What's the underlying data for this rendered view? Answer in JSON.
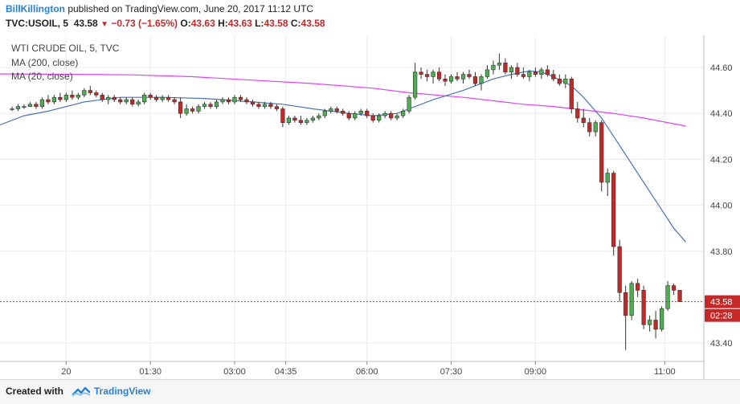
{
  "header": {
    "author": "BillKillington",
    "published": " published on TradingView.com, June 20, 2017 11:12 UTC",
    "symbol": "TVC:USOIL, 5",
    "last": "43.58",
    "change": "−0.73 (−1.65%)",
    "ohlc": [
      {
        "label": "O:",
        "value": "43.63"
      },
      {
        "label": "H:",
        "value": "43.63"
      },
      {
        "label": "L:",
        "value": "43.58"
      },
      {
        "label": "C:",
        "value": "43.58"
      }
    ]
  },
  "footer": {
    "created": "Created with",
    "brand": "TradingView"
  },
  "colors": {
    "up": "#4caf50",
    "down": "#c62828",
    "ma200": "#e040fb",
    "ma20": "#4a73b5",
    "price_line": "#c62828"
  },
  "chart_data": {
    "type": "candlestick",
    "legend": [
      "WTI CRUDE OIL, 5, TVC",
      "MA (200, close)",
      "MA (20, close)"
    ],
    "y_ticks": [
      "44.60",
      "44.40",
      "44.20",
      "44.00",
      "43.80",
      "43.40"
    ],
    "y_tick_values": [
      44.6,
      44.4,
      44.2,
      44.0,
      43.8,
      43.4
    ],
    "ylim": [
      43.32,
      44.74
    ],
    "x_ticks": [
      "20",
      "01:30",
      "03:00",
      "04:35",
      "06:00",
      "07:30",
      "09:00",
      "11:00"
    ],
    "x_tick_pos": [
      9,
      23,
      37,
      45.5,
      59,
      73,
      87,
      108.5
    ],
    "x_range": [
      -2,
      115
    ],
    "last_price": "43.58",
    "last_price_value": 43.58,
    "countdown": "02:28",
    "ohlc": [
      [
        44.42,
        44.43,
        44.41,
        44.42
      ],
      [
        44.42,
        44.44,
        44.41,
        44.43
      ],
      [
        44.43,
        44.44,
        44.42,
        44.43
      ],
      [
        44.43,
        44.45,
        44.43,
        44.44
      ],
      [
        44.44,
        44.45,
        44.42,
        44.43
      ],
      [
        44.43,
        44.47,
        44.42,
        44.46
      ],
      [
        44.46,
        44.48,
        44.44,
        44.45
      ],
      [
        44.45,
        44.48,
        44.44,
        44.47
      ],
      [
        44.47,
        44.49,
        44.45,
        44.46
      ],
      [
        44.46,
        44.49,
        44.45,
        44.48
      ],
      [
        44.48,
        44.5,
        44.46,
        44.47
      ],
      [
        44.47,
        44.49,
        44.46,
        44.48
      ],
      [
        44.48,
        44.51,
        44.47,
        44.5
      ],
      [
        44.5,
        44.52,
        44.48,
        44.49
      ],
      [
        44.49,
        44.5,
        44.47,
        44.48
      ],
      [
        44.48,
        44.49,
        44.45,
        44.46
      ],
      [
        44.46,
        44.48,
        44.44,
        44.47
      ],
      [
        44.47,
        44.48,
        44.45,
        44.46
      ],
      [
        44.46,
        44.47,
        44.44,
        44.45
      ],
      [
        44.45,
        44.47,
        44.44,
        44.46
      ],
      [
        44.46,
        44.47,
        44.43,
        44.44
      ],
      [
        44.44,
        44.46,
        44.43,
        44.45
      ],
      [
        44.45,
        44.49,
        44.44,
        44.48
      ],
      [
        44.48,
        44.49,
        44.46,
        44.47
      ],
      [
        44.47,
        44.48,
        44.45,
        44.46
      ],
      [
        44.46,
        44.48,
        44.45,
        44.47
      ],
      [
        44.47,
        44.48,
        44.45,
        44.46
      ],
      [
        44.46,
        44.47,
        44.44,
        44.45
      ],
      [
        44.45,
        44.47,
        44.38,
        44.4
      ],
      [
        44.4,
        44.44,
        44.39,
        44.42
      ],
      [
        44.42,
        44.43,
        44.4,
        44.41
      ],
      [
        44.41,
        44.44,
        44.4,
        44.43
      ],
      [
        44.43,
        44.45,
        44.42,
        44.44
      ],
      [
        44.44,
        44.45,
        44.42,
        44.43
      ],
      [
        44.43,
        44.46,
        44.42,
        44.45
      ],
      [
        44.45,
        44.47,
        44.44,
        44.46
      ],
      [
        44.46,
        44.47,
        44.44,
        44.45
      ],
      [
        44.45,
        44.48,
        44.44,
        44.47
      ],
      [
        44.47,
        44.48,
        44.45,
        44.46
      ],
      [
        44.46,
        44.47,
        44.44,
        44.45
      ],
      [
        44.45,
        44.46,
        44.43,
        44.44
      ],
      [
        44.44,
        44.45,
        44.42,
        44.43
      ],
      [
        44.43,
        44.45,
        44.42,
        44.44
      ],
      [
        44.44,
        44.45,
        44.42,
        44.43
      ],
      [
        44.43,
        44.44,
        44.41,
        44.42
      ],
      [
        44.42,
        44.43,
        44.34,
        44.36
      ],
      [
        44.36,
        44.39,
        44.35,
        44.38
      ],
      [
        44.38,
        44.39,
        44.36,
        44.37
      ],
      [
        44.37,
        44.39,
        44.35,
        44.36
      ],
      [
        44.36,
        44.38,
        44.35,
        44.37
      ],
      [
        44.37,
        44.39,
        44.36,
        44.38
      ],
      [
        44.38,
        44.4,
        44.37,
        44.39
      ],
      [
        44.39,
        44.42,
        44.38,
        44.41
      ],
      [
        44.41,
        44.43,
        44.4,
        44.42
      ],
      [
        44.42,
        44.43,
        44.4,
        44.41
      ],
      [
        44.41,
        44.42,
        44.39,
        44.4
      ],
      [
        44.4,
        44.41,
        44.37,
        44.38
      ],
      [
        44.38,
        44.41,
        44.37,
        44.4
      ],
      [
        44.4,
        44.42,
        44.39,
        44.41
      ],
      [
        44.41,
        44.42,
        44.38,
        44.39
      ],
      [
        44.39,
        44.4,
        44.36,
        44.37
      ],
      [
        44.37,
        44.4,
        44.36,
        44.39
      ],
      [
        44.39,
        44.41,
        44.38,
        44.4
      ],
      [
        44.4,
        44.41,
        44.37,
        44.38
      ],
      [
        44.38,
        44.4,
        44.37,
        44.39
      ],
      [
        44.39,
        44.42,
        44.38,
        44.41
      ],
      [
        44.41,
        44.48,
        44.4,
        44.47
      ],
      [
        44.47,
        44.62,
        44.46,
        44.58
      ],
      [
        44.58,
        44.6,
        44.55,
        44.57
      ],
      [
        44.57,
        44.59,
        44.54,
        44.56
      ],
      [
        44.56,
        44.59,
        44.53,
        44.58
      ],
      [
        44.58,
        44.6,
        44.54,
        44.55
      ],
      [
        44.55,
        44.57,
        44.52,
        44.54
      ],
      [
        44.54,
        44.57,
        44.53,
        44.56
      ],
      [
        44.56,
        44.58,
        44.54,
        44.55
      ],
      [
        44.55,
        44.58,
        44.53,
        44.57
      ],
      [
        44.57,
        44.59,
        44.55,
        44.56
      ],
      [
        44.56,
        44.58,
        44.52,
        44.53
      ],
      [
        44.53,
        44.57,
        44.5,
        44.56
      ],
      [
        44.56,
        44.61,
        44.55,
        44.59
      ],
      [
        44.59,
        44.63,
        44.57,
        44.61
      ],
      [
        44.61,
        44.66,
        44.59,
        44.62
      ],
      [
        44.62,
        44.64,
        44.57,
        44.58
      ],
      [
        44.58,
        44.61,
        44.55,
        44.6
      ],
      [
        44.6,
        44.62,
        44.56,
        44.57
      ],
      [
        44.57,
        44.6,
        44.55,
        44.56
      ],
      [
        44.56,
        44.59,
        44.54,
        44.58
      ],
      [
        44.58,
        44.6,
        44.56,
        44.57
      ],
      [
        44.57,
        44.6,
        44.55,
        44.59
      ],
      [
        44.59,
        44.61,
        44.56,
        44.57
      ],
      [
        44.57,
        44.59,
        44.54,
        44.55
      ],
      [
        44.55,
        44.57,
        44.52,
        44.53
      ],
      [
        44.53,
        44.57,
        44.51,
        44.55
      ],
      [
        44.55,
        44.56,
        44.4,
        44.42
      ],
      [
        44.42,
        44.45,
        44.36,
        44.38
      ],
      [
        44.38,
        44.42,
        44.34,
        44.36
      ],
      [
        44.36,
        44.38,
        44.3,
        44.32
      ],
      [
        44.32,
        44.37,
        44.3,
        44.36
      ],
      [
        44.36,
        44.37,
        44.06,
        44.1
      ],
      [
        44.1,
        44.16,
        44.04,
        44.14
      ],
      [
        44.14,
        44.15,
        43.78,
        43.82
      ],
      [
        43.82,
        43.85,
        43.58,
        43.62
      ],
      [
        43.62,
        43.65,
        43.37,
        43.52
      ],
      [
        43.52,
        43.67,
        43.5,
        43.66
      ],
      [
        43.66,
        43.68,
        43.6,
        43.63
      ],
      [
        43.63,
        43.65,
        43.46,
        43.48
      ],
      [
        43.48,
        43.52,
        43.45,
        43.5
      ],
      [
        43.5,
        43.54,
        43.42,
        43.46
      ],
      [
        43.46,
        43.56,
        43.45,
        43.55
      ],
      [
        43.55,
        43.67,
        43.54,
        43.65
      ],
      [
        43.65,
        43.66,
        43.61,
        43.63
      ],
      [
        43.63,
        43.63,
        43.58,
        43.58
      ]
    ],
    "ma200": [
      [
        -2,
        44.572
      ],
      [
        10,
        44.57
      ],
      [
        20,
        44.568
      ],
      [
        30,
        44.56
      ],
      [
        40,
        44.545
      ],
      [
        50,
        44.53
      ],
      [
        60,
        44.51
      ],
      [
        66,
        44.49
      ],
      [
        75,
        44.47
      ],
      [
        85,
        44.44
      ],
      [
        90,
        44.43
      ],
      [
        95,
        44.415
      ],
      [
        100,
        44.4
      ],
      [
        105,
        44.38
      ],
      [
        110,
        44.355
      ],
      [
        112,
        44.345
      ]
    ],
    "ma20": [
      [
        -2,
        44.35
      ],
      [
        2,
        44.39
      ],
      [
        6,
        44.41
      ],
      [
        12,
        44.45
      ],
      [
        18,
        44.47
      ],
      [
        25,
        44.47
      ],
      [
        32,
        44.465
      ],
      [
        40,
        44.45
      ],
      [
        45,
        44.44
      ],
      [
        50,
        44.42
      ],
      [
        56,
        44.4
      ],
      [
        60,
        44.39
      ],
      [
        64,
        44.4
      ],
      [
        66,
        44.42
      ],
      [
        70,
        44.46
      ],
      [
        75,
        44.5
      ],
      [
        80,
        44.55
      ],
      [
        83,
        44.57
      ],
      [
        86,
        44.585
      ],
      [
        88,
        44.58
      ],
      [
        90,
        44.56
      ],
      [
        93,
        44.52
      ],
      [
        95,
        44.47
      ],
      [
        98,
        44.38
      ],
      [
        101,
        44.26
      ],
      [
        104,
        44.14
      ],
      [
        107,
        44.02
      ],
      [
        110,
        43.9
      ],
      [
        112,
        43.84
      ]
    ]
  }
}
